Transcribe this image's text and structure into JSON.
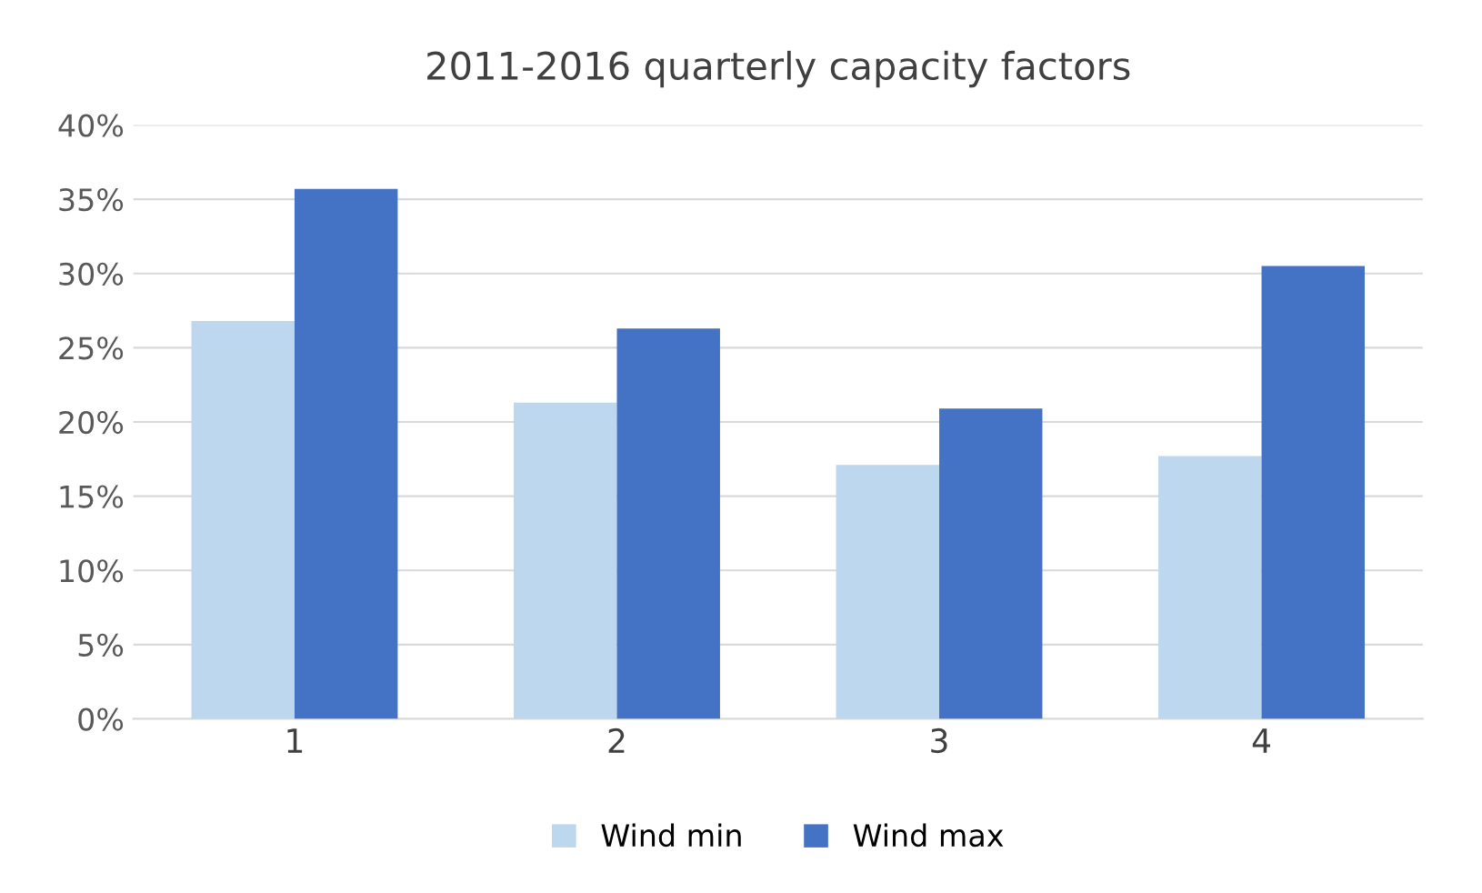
{
  "chart_data": {
    "type": "bar",
    "title": "2011-2016 quarterly capacity factors",
    "categories": [
      "1",
      "2",
      "3",
      "4"
    ],
    "series": [
      {
        "name": "Wind min",
        "color": "#bdd7ee",
        "values": [
          26.8,
          21.3,
          17.1,
          17.7
        ]
      },
      {
        "name": "Wind max",
        "color": "#4472c4",
        "values": [
          35.7,
          26.3,
          20.9,
          30.5
        ]
      }
    ],
    "ylim": [
      0,
      40
    ],
    "yticks": [
      {
        "value": 0,
        "label": "0%"
      },
      {
        "value": 5,
        "label": "5%"
      },
      {
        "value": 10,
        "label": "10%"
      },
      {
        "value": 15,
        "label": "15%"
      },
      {
        "value": 20,
        "label": "20%"
      },
      {
        "value": 25,
        "label": "25%"
      },
      {
        "value": 30,
        "label": "30%"
      },
      {
        "value": 35,
        "label": "35%"
      },
      {
        "value": 40,
        "label": "40%"
      }
    ],
    "grid": "y",
    "legend": "bottom"
  }
}
